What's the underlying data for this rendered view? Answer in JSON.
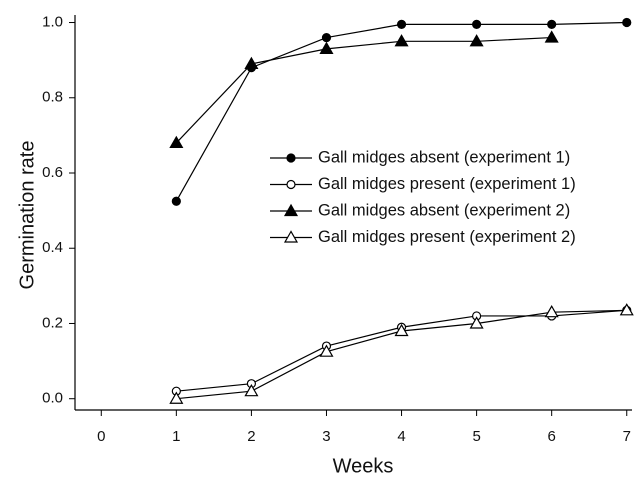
{
  "chart_data": {
    "type": "line",
    "xlabel": "Weeks",
    "ylabel": "Germination rate",
    "x": [
      1,
      2,
      3,
      4,
      5,
      6,
      7
    ],
    "series": [
      {
        "name": "Gall midges absent (experiment 1)",
        "color": "#000000",
        "marker": "circle",
        "filled": true,
        "values": [
          0.525,
          0.88,
          0.96,
          0.995,
          0.995,
          0.995,
          1.0
        ]
      },
      {
        "name": "Gall midges present (experiment 1)",
        "color": "#000000",
        "marker": "circle",
        "filled": false,
        "values": [
          0.02,
          0.04,
          0.14,
          0.19,
          0.22,
          0.22,
          0.235
        ]
      },
      {
        "name": "Gall midges absent (experiment 2)",
        "color": "#000000",
        "marker": "triangle",
        "filled": true,
        "values": [
          0.68,
          0.89,
          0.93,
          0.95,
          0.95,
          0.96,
          null
        ]
      },
      {
        "name": "Gall midges present (experiment 2)",
        "color": "#000000",
        "marker": "triangle",
        "filled": false,
        "values": [
          0.0,
          0.02,
          0.125,
          0.18,
          0.2,
          0.23,
          0.235
        ]
      }
    ],
    "xlim": [
      -0.35,
      7.07
    ],
    "xticks": [
      0,
      1,
      2,
      3,
      4,
      5,
      6,
      7
    ],
    "ylim": [
      -0.03,
      1.02
    ],
    "yticks": [
      {
        "value": 0,
        "label": "0.0"
      },
      0.2,
      0.4,
      0.6,
      0.8,
      {
        "value": 1,
        "label": "1.0"
      }
    ],
    "grid": false,
    "legend": "right"
  }
}
